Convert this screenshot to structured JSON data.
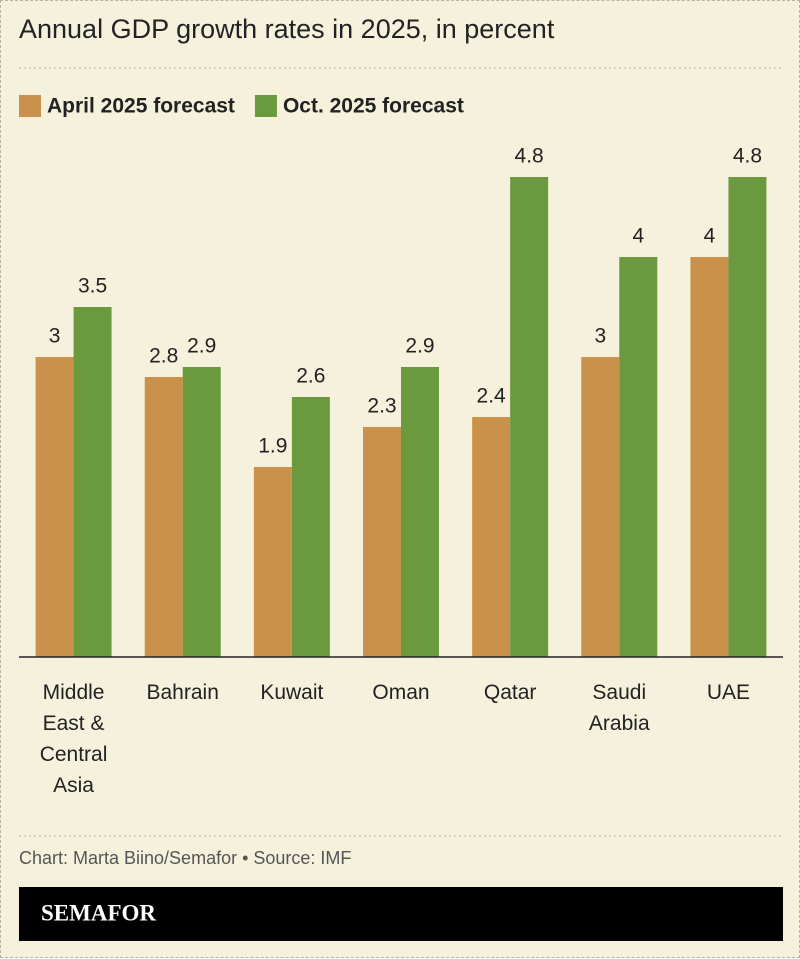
{
  "chart_data": {
    "type": "bar",
    "title": "Annual GDP growth rates in 2025, in percent",
    "categories": [
      "Middle East & Central Asia",
      "Bahrain",
      "Kuwait",
      "Oman",
      "Qatar",
      "Saudi Arabia",
      "UAE"
    ],
    "series": [
      {
        "name": "April 2025 forecast",
        "color": "#c9914a",
        "values": [
          3,
          2.8,
          1.9,
          2.3,
          2.4,
          3,
          4
        ]
      },
      {
        "name": "Oct. 2025 forecast",
        "color": "#6b9a3e",
        "values": [
          3.5,
          2.9,
          2.6,
          2.9,
          4.8,
          4,
          4.8
        ]
      }
    ],
    "ylim": [
      0,
      5
    ],
    "source": "Chart: Marta Biino/Semafor • Source: IMF",
    "brand": "SEMAFOR"
  }
}
